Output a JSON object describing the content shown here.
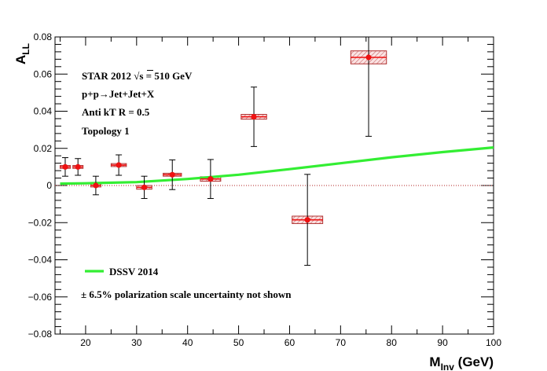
{
  "chart_data": {
    "type": "scatter",
    "title": "",
    "xlabel": "M",
    "xlabel_sub": "Inv",
    "xlabel_unit": " (GeV)",
    "ylabel": "A",
    "ylabel_sub": "LL",
    "xlim": [
      14,
      100
    ],
    "ylim": [
      -0.08,
      0.08
    ],
    "x_ticks": [
      20,
      30,
      40,
      50,
      60,
      70,
      80,
      90,
      100
    ],
    "x_tick_labels": [
      "20",
      "30",
      "40",
      "50",
      "60",
      "70",
      "80",
      "90",
      "100"
    ],
    "y_ticks": [
      -0.08,
      -0.06,
      -0.04,
      -0.02,
      0,
      0.02,
      0.04,
      0.06,
      0.08
    ],
    "y_tick_labels": [
      "−0.08",
      "−0.06",
      "−0.04",
      "−0.02",
      "0",
      "0.02",
      "0.04",
      "0.06",
      "0.08"
    ],
    "grid": false,
    "zero_line": true,
    "annotations": [
      "STAR 2012   √s = 510 GeV",
      "p+p→Jet+Jet+X",
      "Anti kT R = 0.5",
      "Topology 1",
      "± 6.5% polarization scale uncertainty not shown"
    ],
    "legend": {
      "placement": "bottom-left",
      "entries": [
        {
          "label": "DSSV 2014",
          "color": "#33ee33"
        }
      ]
    },
    "series": [
      {
        "name": "",
        "kind": "points",
        "color": "#ee1111",
        "points": [
          {
            "x": 16.0,
            "y": 0.01,
            "xerr": 1.0,
            "stat_err": 0.005,
            "sys_err": 0.0008
          },
          {
            "x": 18.5,
            "y": 0.01,
            "xerr": 1.0,
            "stat_err": 0.0045,
            "sys_err": 0.0008
          },
          {
            "x": 22.0,
            "y": 0.0,
            "xerr": 1.0,
            "stat_err": 0.005,
            "sys_err": 0.0008
          },
          {
            "x": 26.5,
            "y": 0.011,
            "xerr": 1.5,
            "stat_err": 0.0055,
            "sys_err": 0.0008
          },
          {
            "x": 31.5,
            "y": -0.001,
            "xerr": 1.5,
            "stat_err": 0.006,
            "sys_err": 0.001,
            "box_xerr": 1.5
          },
          {
            "x": 37.0,
            "y": 0.0058,
            "xerr": 1.8,
            "stat_err": 0.008,
            "sys_err": 0.0008,
            "box_xerr": 1.8
          },
          {
            "x": 44.5,
            "y": 0.0035,
            "xerr": 2.0,
            "stat_err": 0.0105,
            "sys_err": 0.0012,
            "box_xerr": 2.0
          },
          {
            "x": 53.0,
            "y": 0.037,
            "xerr": 2.5,
            "stat_err": 0.016,
            "sys_err": 0.0013,
            "box_xerr": 2.5
          },
          {
            "x": 63.5,
            "y": -0.0185,
            "xerr": 3.0,
            "stat_err": 0.0245,
            "sys_err": 0.002,
            "box_xerr": 3.0
          },
          {
            "x": 75.5,
            "y": 0.069,
            "xerr": 3.5,
            "stat_err": 0.0425,
            "sys_err": 0.0035,
            "box_xerr": 3.5
          }
        ]
      },
      {
        "name": "DSSV 2014",
        "kind": "curve",
        "color": "#33ee33",
        "x": [
          15,
          20,
          30,
          40,
          50,
          60,
          70,
          80,
          90,
          100
        ],
        "y": [
          0.001,
          0.0012,
          0.0018,
          0.0035,
          0.0058,
          0.0088,
          0.012,
          0.0152,
          0.018,
          0.0205
        ]
      }
    ]
  }
}
